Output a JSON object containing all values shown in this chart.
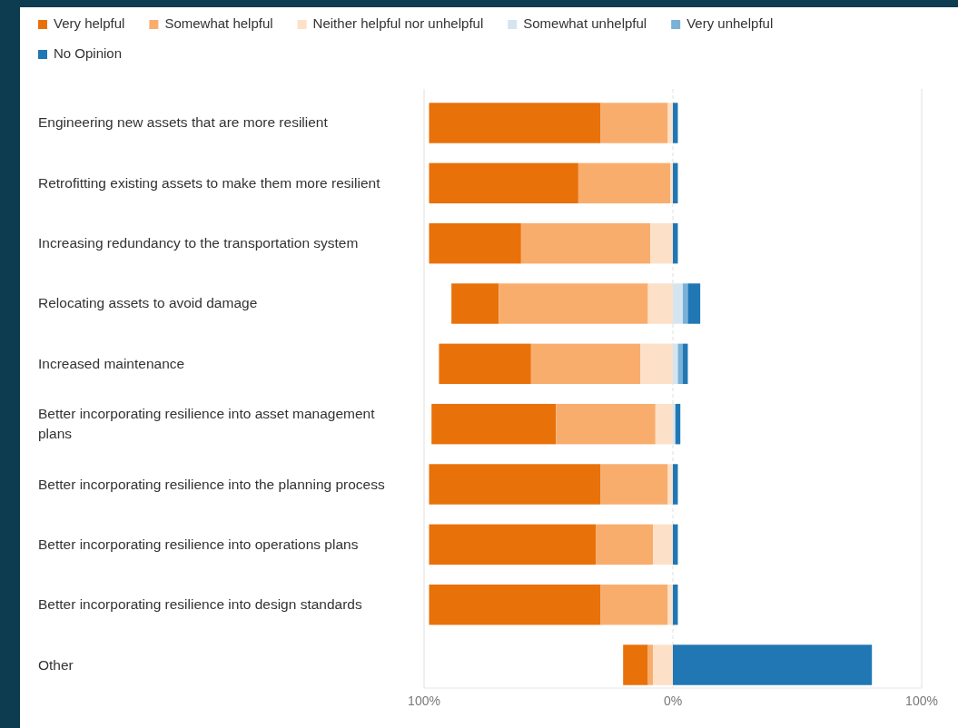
{
  "chart_data": {
    "type": "bar",
    "orientation": "horizontal",
    "categories": [
      "Engineering new assets that are more resilient",
      "Retrofitting existing assets to make them more resilient",
      "Increasing redundancy to the transportation system",
      "Relocating assets to avoid damage",
      "Increased maintenance",
      "Better incorporating resilience into asset management plans",
      "Better incorporating resilience into the planning process",
      "Better incorporating resilience into operations plans",
      "Better incorporating resilience into design standards",
      "Other"
    ],
    "series": [
      {
        "name": "Very helpful",
        "color": "#e8710a",
        "values": [
          69,
          60,
          37,
          19,
          37,
          50,
          69,
          67,
          69,
          10
        ],
        "base": [
          -98,
          -98,
          -98,
          -89,
          -94,
          -97,
          -98,
          -98,
          -98,
          -20
        ]
      },
      {
        "name": "Somewhat helpful",
        "color": "#f9ad6d",
        "values": [
          27,
          37,
          52,
          60,
          44,
          40,
          27,
          23,
          27,
          2
        ],
        "base": [
          -29,
          -38,
          -61,
          -70,
          -57,
          -47,
          -29,
          -31,
          -29,
          -10
        ]
      },
      {
        "name": "Neither helpful nor unhelpful",
        "color": "#fde0c8",
        "values": [
          2,
          1,
          9,
          10,
          13,
          7,
          2,
          8,
          2,
          8
        ],
        "base": [
          -2,
          -1,
          -9,
          -10,
          -13,
          -7,
          -2,
          -8,
          -2,
          -8
        ]
      },
      {
        "name": "Somewhat unhelpful",
        "color": "#d4e5f1",
        "values": [
          null,
          null,
          null,
          4,
          2,
          1,
          null,
          null,
          null,
          null
        ],
        "base": [
          null,
          null,
          null,
          0,
          0,
          0,
          null,
          null,
          null,
          null
        ]
      },
      {
        "name": "Very unhelpful",
        "color": "#7ab1d6",
        "values": [
          null,
          null,
          null,
          2,
          2,
          null,
          null,
          null,
          null,
          null
        ],
        "base": [
          null,
          null,
          null,
          4,
          2,
          null,
          null,
          null,
          null,
          null
        ]
      },
      {
        "name": "No Opinion",
        "color": "#2077b4",
        "values": [
          2,
          2,
          2,
          5,
          2,
          2,
          2,
          2,
          2,
          80
        ],
        "base": [
          0,
          0,
          0,
          6,
          4,
          1,
          0,
          0,
          0,
          0
        ]
      }
    ],
    "xlim": [
      -100,
      100
    ],
    "xticks": [
      {
        "value": -100,
        "label": "100%"
      },
      {
        "value": 0,
        "label": "0%"
      },
      {
        "value": 100,
        "label": "100%"
      }
    ],
    "grid": "x",
    "legend": "top"
  }
}
